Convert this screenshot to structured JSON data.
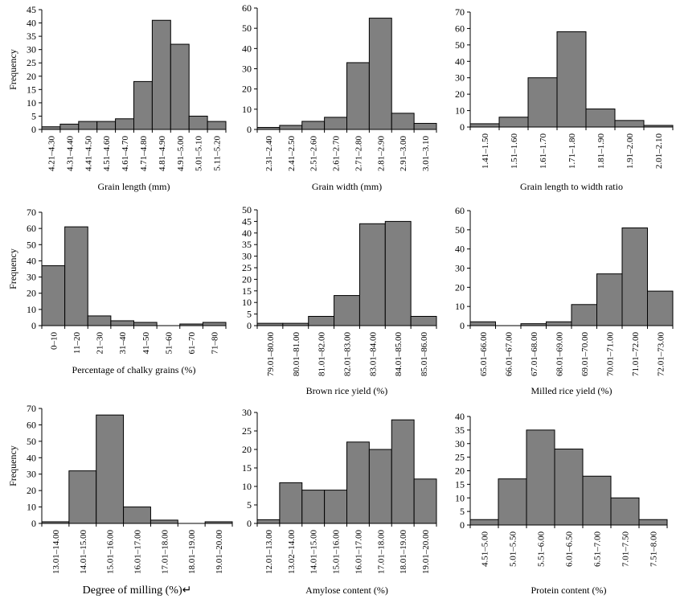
{
  "chart_data": [
    {
      "type": "bar",
      "ylabel": "Frequency",
      "xlabel": "Grain length (mm)",
      "ylim": [
        0,
        45
      ],
      "yticks": [
        0,
        5,
        10,
        15,
        20,
        25,
        30,
        35,
        40,
        45
      ],
      "categories": [
        "4.21–4.30",
        "4.31–4.40",
        "4.41–4.50",
        "4.51–4.60",
        "4.61–4.70",
        "4.71–4.80",
        "4.81–4.90",
        "4.91–5.00",
        "5.01–5.10",
        "5.11–5.20"
      ],
      "values": [
        1,
        2,
        3,
        3,
        4,
        18,
        41,
        32,
        5,
        3
      ]
    },
    {
      "type": "bar",
      "ylabel": "",
      "xlabel": "Grain width (mm)",
      "ylim": [
        0,
        60
      ],
      "yticks": [
        0,
        10,
        20,
        30,
        40,
        50,
        60
      ],
      "categories": [
        "2.31–2.40",
        "2.41–2.50",
        "2.51–2.60",
        "2.61–2.70",
        "2.71–2.80",
        "2.81–2.90",
        "2.91–3.00",
        "3.01–3.10"
      ],
      "values": [
        1,
        2,
        4,
        6,
        33,
        55,
        8,
        3
      ]
    },
    {
      "type": "bar",
      "ylabel": "",
      "xlabel": "Grain length to width ratio",
      "ylim": [
        0,
        70
      ],
      "yticks": [
        0,
        10,
        20,
        30,
        40,
        50,
        60,
        70
      ],
      "categories": [
        "1.41–1.50",
        "1.51–1.60",
        "1.61–1.70",
        "1.71–1.80",
        "1.81–1.90",
        "1.91–2.00",
        "2.01–2.10"
      ],
      "values": [
        2,
        6,
        30,
        58,
        11,
        4,
        1
      ]
    },
    {
      "type": "bar",
      "ylabel": "Frequency",
      "xlabel": "Percentage of chalky grains (%)",
      "ylim": [
        0,
        70
      ],
      "yticks": [
        0,
        10,
        20,
        30,
        40,
        50,
        60,
        70
      ],
      "categories": [
        "0–10",
        "11–20",
        "21–30",
        "31–40",
        "41–50",
        "51–60",
        "61–70",
        "71–80"
      ],
      "values": [
        37,
        61,
        6,
        3,
        2,
        0,
        1,
        2
      ]
    },
    {
      "type": "bar",
      "ylabel": "",
      "xlabel": "Brown rice yield (%)",
      "ylim": [
        0,
        50
      ],
      "yticks": [
        0,
        5,
        10,
        15,
        20,
        25,
        30,
        35,
        40,
        45,
        50
      ],
      "categories": [
        "79.01–80.00",
        "80.01–81.00",
        "81.01–82.00",
        "82.01–83.00",
        "83.01–84.00",
        "84.01–85.00",
        "85.01–86.00"
      ],
      "values": [
        1,
        1,
        4,
        13,
        44,
        45,
        4
      ]
    },
    {
      "type": "bar",
      "ylabel": "",
      "xlabel": "Milled rice yield (%)",
      "ylim": [
        0,
        60
      ],
      "yticks": [
        0,
        10,
        20,
        30,
        40,
        50,
        60
      ],
      "categories": [
        "65.01–66.00",
        "66.01–67.00",
        "67.01–68.00",
        "68.01–69.00",
        "69.01–70.00",
        "70.01–71.00",
        "71.01–72.00",
        "72.01–73.00"
      ],
      "values": [
        2,
        0,
        1,
        2,
        11,
        27,
        51,
        18
      ]
    },
    {
      "type": "bar",
      "ylabel": "Frequency",
      "xlabel": "Degree of milling (%)↵",
      "ylim": [
        0,
        70
      ],
      "yticks": [
        0,
        10,
        20,
        30,
        40,
        50,
        60,
        70
      ],
      "categories": [
        "13.01–14.00",
        "14.01–15.00",
        "15.01–16.00",
        "16.01–17.00",
        "17.01–18.00",
        "18.01–19.00",
        "19.01–20.00"
      ],
      "values": [
        1,
        32,
        66,
        10,
        2,
        0,
        1
      ]
    },
    {
      "type": "bar",
      "ylabel": "",
      "xlabel": "Amylose content (%)",
      "ylim": [
        0,
        30
      ],
      "yticks": [
        0,
        5,
        10,
        15,
        20,
        25,
        30
      ],
      "categories": [
        "12.01–13.00",
        "13.02–14.00",
        "14.01–15.00",
        "15.01–16.00",
        "16.01–17.00",
        "17.01–18.00",
        "18.01–19.00",
        "19.01–20.00"
      ],
      "values": [
        1,
        11,
        9,
        9,
        22,
        20,
        28,
        12
      ]
    },
    {
      "type": "bar",
      "ylabel": "",
      "xlabel": "Protein content (%)",
      "ylim": [
        0,
        40
      ],
      "yticks": [
        0,
        5,
        10,
        15,
        20,
        25,
        30,
        35,
        40
      ],
      "categories": [
        "4.51–5.00",
        "5.01–5.50",
        "5.51–6.00",
        "6.01–6.50",
        "6.51–7.00",
        "7.01–7.50",
        "7.51–8.00"
      ],
      "values": [
        2,
        17,
        35,
        28,
        18,
        10,
        2
      ]
    }
  ],
  "style": {
    "bar_fill": "#808080",
    "bar_stroke": "#000000"
  }
}
